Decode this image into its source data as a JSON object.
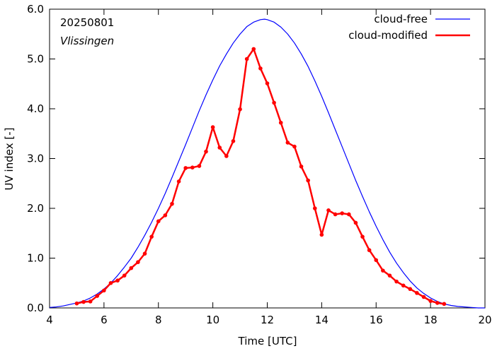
{
  "chart_data": {
    "type": "line",
    "annotations": {
      "date": "20250801",
      "station": "Vlissingen"
    },
    "xlabel": "Time  [UTC]",
    "ylabel": "UV index  [-]",
    "xlim": [
      4,
      20
    ],
    "ylim": [
      0,
      6.0
    ],
    "x_ticks": [
      "4",
      "6",
      "8",
      "10",
      "12",
      "14",
      "16",
      "18",
      "20"
    ],
    "y_ticks": [
      "0.0",
      "1.0",
      "2.0",
      "3.0",
      "4.0",
      "5.0",
      "6.0"
    ],
    "legend_position": "top-right",
    "series": [
      {
        "name": "cloud-free",
        "color": "#0000ff",
        "markers": false,
        "x": [
          4.0,
          4.25,
          4.5,
          4.75,
          5.0,
          5.25,
          5.5,
          5.75,
          6.0,
          6.25,
          6.5,
          6.75,
          7.0,
          7.25,
          7.5,
          7.75,
          8.0,
          8.25,
          8.5,
          8.75,
          9.0,
          9.25,
          9.5,
          9.75,
          10.0,
          10.25,
          10.5,
          10.75,
          11.0,
          11.25,
          11.5,
          11.75,
          11.9,
          12.0,
          12.25,
          12.5,
          12.75,
          13.0,
          13.25,
          13.5,
          13.75,
          14.0,
          14.25,
          14.5,
          14.75,
          15.0,
          15.25,
          15.5,
          15.75,
          16.0,
          16.25,
          16.5,
          16.75,
          17.0,
          17.25,
          17.5,
          17.75,
          18.0,
          18.25,
          18.5,
          18.75,
          19.0,
          19.25,
          19.5,
          19.75,
          20.0
        ],
        "y": [
          0.01,
          0.02,
          0.04,
          0.07,
          0.1,
          0.14,
          0.2,
          0.28,
          0.38,
          0.5,
          0.65,
          0.82,
          1.0,
          1.22,
          1.46,
          1.72,
          2.0,
          2.3,
          2.62,
          2.95,
          3.28,
          3.62,
          3.96,
          4.28,
          4.58,
          4.86,
          5.1,
          5.32,
          5.5,
          5.65,
          5.74,
          5.79,
          5.8,
          5.79,
          5.74,
          5.64,
          5.5,
          5.32,
          5.1,
          4.85,
          4.56,
          4.25,
          3.92,
          3.58,
          3.24,
          2.9,
          2.56,
          2.24,
          1.93,
          1.64,
          1.37,
          1.12,
          0.9,
          0.71,
          0.54,
          0.4,
          0.29,
          0.2,
          0.13,
          0.08,
          0.05,
          0.03,
          0.02,
          0.01,
          0.0,
          0.0
        ]
      },
      {
        "name": "cloud-modified",
        "color": "#ff0000",
        "markers": true,
        "x": [
          5.0,
          5.25,
          5.5,
          5.75,
          6.0,
          6.25,
          6.5,
          6.75,
          7.0,
          7.25,
          7.5,
          7.75,
          8.0,
          8.25,
          8.5,
          8.75,
          9.0,
          9.25,
          9.5,
          9.75,
          10.0,
          10.25,
          10.5,
          10.75,
          11.0,
          11.25,
          11.5,
          11.75,
          12.0,
          12.25,
          12.5,
          12.75,
          13.0,
          13.25,
          13.5,
          13.75,
          14.0,
          14.25,
          14.5,
          14.75,
          15.0,
          15.25,
          15.5,
          15.75,
          16.0,
          16.25,
          16.5,
          16.75,
          17.0,
          17.25,
          17.5,
          17.75,
          18.0,
          18.25,
          18.5
        ],
        "y": [
          0.09,
          0.12,
          0.13,
          0.24,
          0.35,
          0.5,
          0.55,
          0.65,
          0.8,
          0.92,
          1.09,
          1.43,
          1.74,
          1.86,
          2.09,
          2.54,
          2.81,
          2.82,
          2.85,
          3.14,
          3.63,
          3.22,
          3.05,
          3.35,
          3.99,
          5.0,
          5.2,
          4.81,
          4.51,
          4.12,
          3.72,
          3.32,
          3.24,
          2.84,
          2.56,
          2.0,
          1.47,
          1.96,
          1.88,
          1.9,
          1.88,
          1.71,
          1.43,
          1.16,
          0.96,
          0.75,
          0.65,
          0.53,
          0.45,
          0.38,
          0.3,
          0.22,
          0.14,
          0.1,
          0.08
        ]
      }
    ]
  }
}
